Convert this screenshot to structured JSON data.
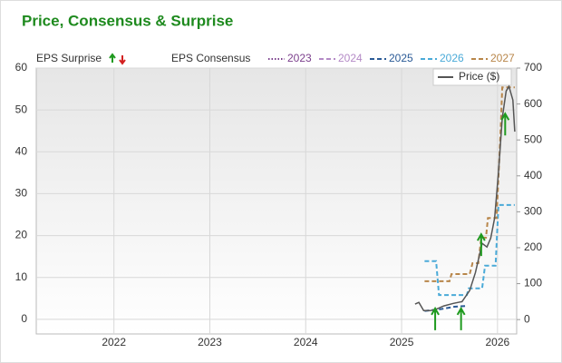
{
  "chart_data": {
    "type": "line",
    "title": "Price, Consensus & Surprise",
    "surprise_label": "EPS Surprise",
    "consensus_label": "EPS Consensus",
    "xlim": [
      2021.19,
      2026.2
    ],
    "xticks": [
      2022,
      2023,
      2024,
      2025,
      2026
    ],
    "ylim": [
      -3.5,
      60
    ],
    "yticks": [
      0,
      10,
      20,
      30,
      40,
      50,
      60
    ],
    "y2lim": [
      -40,
      700
    ],
    "y2ticks": [
      0,
      100,
      200,
      300,
      400,
      500,
      600,
      700
    ],
    "grid": true,
    "series": [
      {
        "name": "2023",
        "color": "#7b3f8c",
        "dash": "dotted",
        "x": [],
        "values": []
      },
      {
        "name": "2024",
        "color": "#b48ac6",
        "dash": "dashed",
        "x": [],
        "values": []
      },
      {
        "name": "2025",
        "color": "#2a5a96",
        "dash": "dashed",
        "x": [
          2025.24,
          2025.4,
          2025.55,
          2025.68
        ],
        "values": [
          2.0,
          2.4,
          3.0,
          3.2
        ]
      },
      {
        "name": "2026",
        "color": "#4aaad8",
        "dash": "dashed",
        "x": [
          2025.24,
          2025.36,
          2025.39,
          2025.68,
          2025.7,
          2025.84,
          2025.87,
          2025.98,
          2026.01,
          2026.18
        ],
        "values": [
          13.9,
          13.9,
          5.8,
          5.8,
          7.4,
          7.4,
          12.8,
          12.8,
          27.3,
          27.3
        ]
      },
      {
        "name": "2027",
        "color": "#b8864a",
        "dash": "dashed",
        "x": [
          2025.24,
          2025.5,
          2025.52,
          2025.71,
          2025.74,
          2025.8,
          2025.83,
          2025.88,
          2025.9,
          2025.99,
          2026.03,
          2026.05,
          2026.18
        ],
        "values": [
          9.1,
          9.1,
          10.8,
          10.8,
          13.4,
          13.4,
          19.5,
          19.5,
          24.2,
          24.2,
          43.7,
          55.4,
          55.4
        ]
      },
      {
        "name": "Price ($)",
        "axis": "y2",
        "color": "#555555",
        "dash": "solid",
        "x": [
          2025.14,
          2025.18,
          2025.23,
          2025.3,
          2025.37,
          2025.44,
          2025.54,
          2025.63,
          2025.71,
          2025.77,
          2025.84,
          2025.89,
          2025.93,
          2025.97,
          2026.01,
          2026.05,
          2026.09,
          2026.12,
          2026.16,
          2026.18
        ],
        "values": [
          43,
          48,
          25,
          25,
          30,
          38,
          45,
          50,
          81,
          131,
          212,
          202,
          227,
          283,
          409,
          561,
          636,
          649,
          611,
          523
        ]
      }
    ],
    "surprises": {
      "color": "#1f9a1f",
      "x": [
        2025.35,
        2025.62,
        2025.83,
        2026.08
      ],
      "values": [
        2.6,
        2.6,
        20.3,
        49.1
      ]
    }
  }
}
